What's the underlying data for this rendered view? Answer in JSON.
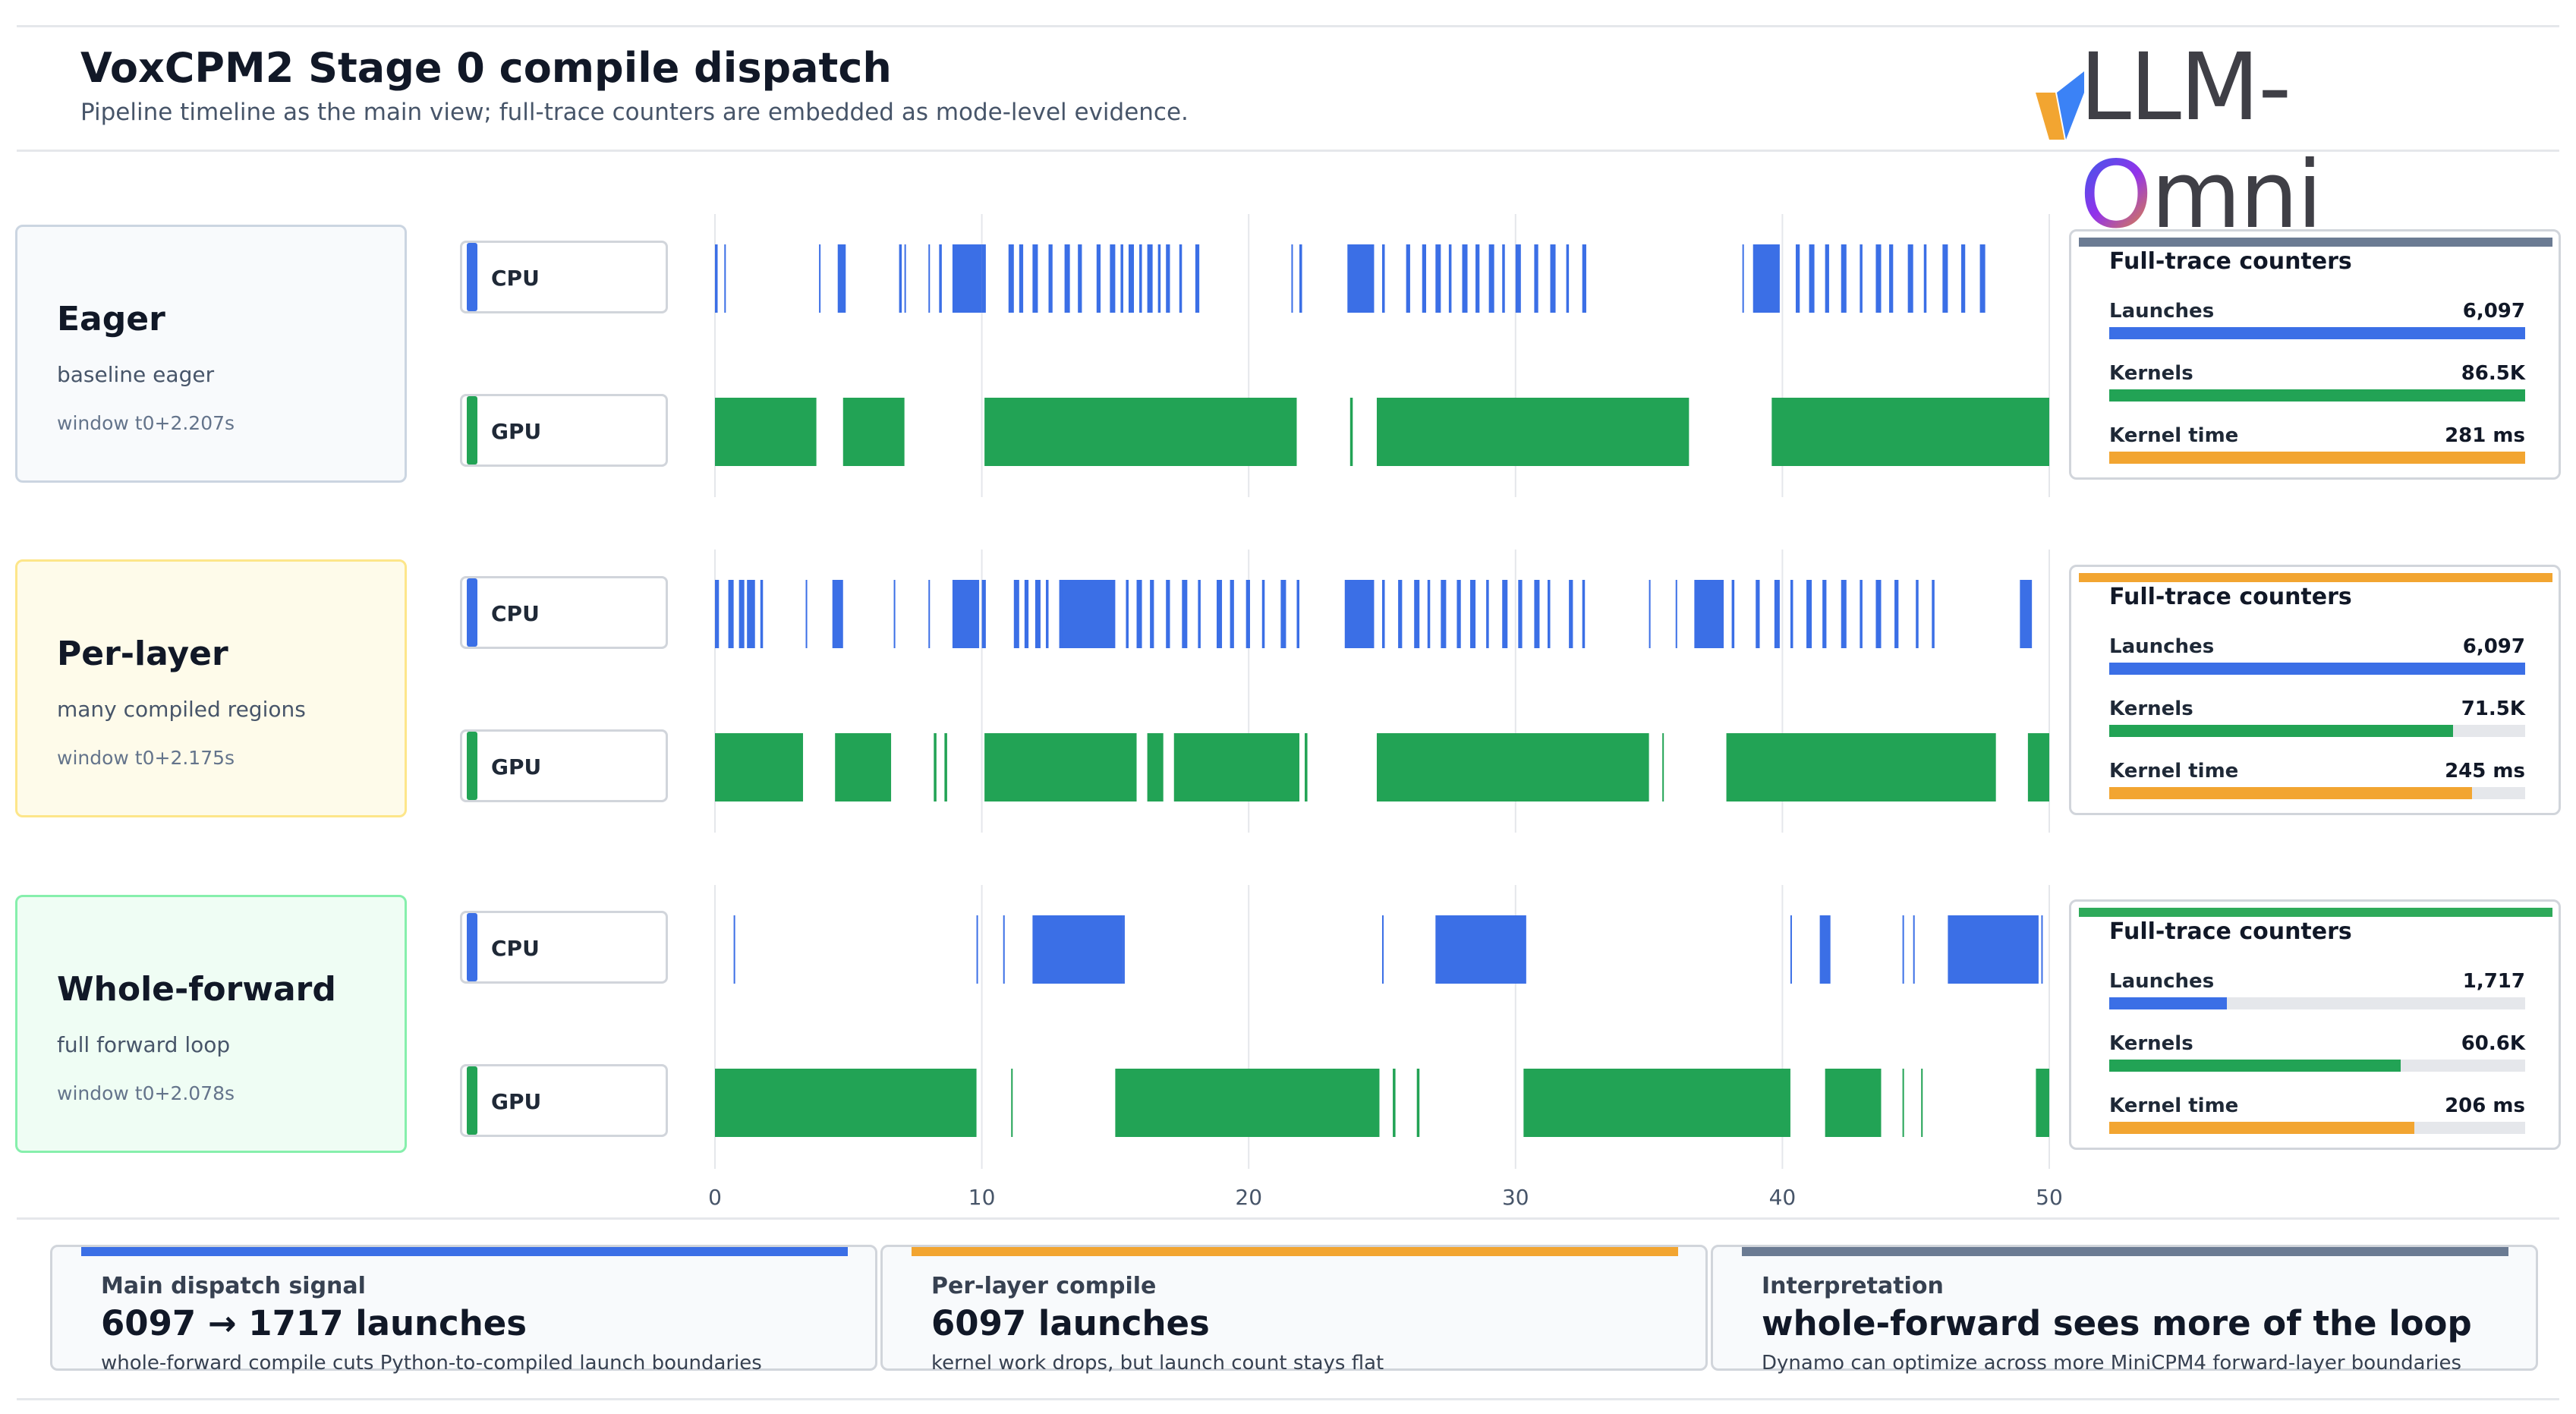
{
  "header": {
    "title": "VoxCPM2 Stage 0 compile dispatch",
    "subtitle": "Pipeline timeline as the main view; full-trace counters are embedded as mode-level evidence.",
    "logo_text": "vLLM-Omni"
  },
  "modes": [
    {
      "name": "Eager",
      "desc": "baseline eager",
      "window": "window t0+2.207s"
    },
    {
      "name": "Per-layer",
      "desc": "many compiled regions",
      "window": "window t0+2.175s"
    },
    {
      "name": "Whole-forward",
      "desc": "full forward loop",
      "window": "window t0+2.078s"
    }
  ],
  "lanes": {
    "cpu": "CPU",
    "gpu": "GPU"
  },
  "counters": [
    {
      "title": "Full-trace counters",
      "launches": {
        "label": "Launches",
        "value": "6,097",
        "fraction": 1.0
      },
      "kernels": {
        "label": "Kernels",
        "value": "86.5K",
        "fraction": 1.0
      },
      "kernel_time": {
        "label": "Kernel time",
        "value": "281 ms",
        "fraction": 1.0
      }
    },
    {
      "title": "Full-trace counters",
      "launches": {
        "label": "Launches",
        "value": "6,097",
        "fraction": 1.0
      },
      "kernels": {
        "label": "Kernels",
        "value": "71.5K",
        "fraction": 0.827
      },
      "kernel_time": {
        "label": "Kernel time",
        "value": "245 ms",
        "fraction": 0.872
      }
    },
    {
      "title": "Full-trace counters",
      "launches": {
        "label": "Launches",
        "value": "1,717",
        "fraction": 0.282
      },
      "kernels": {
        "label": "Kernels",
        "value": "60.6K",
        "fraction": 0.701
      },
      "kernel_time": {
        "label": "Kernel time",
        "value": "206 ms",
        "fraction": 0.733
      }
    }
  ],
  "bottom_cards": [
    {
      "label": "Main dispatch signal",
      "headline": "6097 → 1717 launches",
      "note": "whole-forward compile cuts Python-to-compiled launch boundaries"
    },
    {
      "label": "Per-layer compile",
      "headline": "6097 launches",
      "note": "kernel work drops, but launch count stays flat"
    },
    {
      "label": "Interpretation",
      "headline": "whole-forward sees more of the loop",
      "note": "Dynamo can optimize across more MiniCPM4 forward-layer boundaries"
    }
  ],
  "colors": {
    "cpu": "#3b6fe6",
    "gpu": "#22a355",
    "kernel_time": "#f2a531",
    "eager_accent": "#6b7b93",
    "perlayer_accent": "#f2a531",
    "whole_accent": "#2eaa5a",
    "launches": "#3b6fe6"
  },
  "chart_data": {
    "type": "timeline",
    "x_ticks": [
      0,
      10,
      20,
      30,
      40,
      50
    ],
    "xlim": [
      0,
      50
    ],
    "lanes": [
      {
        "mode": "Eager",
        "cpu": [
          [
            0,
            0.1
          ],
          [
            0.35,
            0.05
          ],
          [
            3.9,
            0.05
          ],
          [
            4.6,
            0.3
          ],
          [
            6.9,
            0.1
          ],
          [
            7.1,
            0.05
          ],
          [
            8.0,
            0.05
          ],
          [
            8.4,
            0.1
          ],
          [
            8.9,
            1.1
          ],
          [
            10.0,
            0.15
          ],
          [
            11.0,
            0.2
          ],
          [
            11.4,
            0.15
          ],
          [
            11.9,
            0.2
          ],
          [
            12.5,
            0.15
          ],
          [
            13.1,
            0.2
          ],
          [
            13.6,
            0.15
          ],
          [
            14.3,
            0.15
          ],
          [
            14.8,
            0.2
          ],
          [
            15.2,
            0.1
          ],
          [
            15.5,
            0.2
          ],
          [
            15.9,
            0.1
          ],
          [
            16.2,
            0.2
          ],
          [
            16.6,
            0.1
          ],
          [
            16.9,
            0.15
          ],
          [
            17.4,
            0.1
          ],
          [
            18.0,
            0.15
          ],
          [
            21.6,
            0.05
          ],
          [
            21.9,
            0.1
          ],
          [
            23.7,
            1.0
          ],
          [
            25.0,
            0.1
          ],
          [
            25.9,
            0.15
          ],
          [
            26.5,
            0.15
          ],
          [
            27.0,
            0.2
          ],
          [
            27.5,
            0.1
          ],
          [
            28.0,
            0.2
          ],
          [
            28.5,
            0.15
          ],
          [
            29.0,
            0.2
          ],
          [
            29.5,
            0.1
          ],
          [
            30.0,
            0.2
          ],
          [
            30.7,
            0.15
          ],
          [
            31.3,
            0.2
          ],
          [
            31.9,
            0.1
          ],
          [
            32.5,
            0.15
          ],
          [
            38.5,
            0.05
          ],
          [
            38.9,
            1.0
          ],
          [
            40.5,
            0.15
          ],
          [
            41.0,
            0.2
          ],
          [
            41.6,
            0.15
          ],
          [
            42.2,
            0.2
          ],
          [
            42.9,
            0.1
          ],
          [
            43.5,
            0.2
          ],
          [
            44.0,
            0.15
          ],
          [
            44.7,
            0.2
          ],
          [
            45.3,
            0.1
          ],
          [
            46.0,
            0.2
          ],
          [
            46.7,
            0.15
          ],
          [
            47.4,
            0.2
          ]
        ],
        "gpu": [
          [
            0,
            3.8
          ],
          [
            4.8,
            2.3
          ],
          [
            10.1,
            11.7
          ],
          [
            23.8,
            0.1
          ],
          [
            24.8,
            11.7
          ],
          [
            39.6,
            10.4
          ]
        ]
      },
      {
        "mode": "Per-layer",
        "cpu": [
          [
            0,
            0.15
          ],
          [
            0.5,
            0.2
          ],
          [
            0.9,
            0.2
          ],
          [
            1.2,
            0.3
          ],
          [
            1.7,
            0.1
          ],
          [
            3.4,
            0.05
          ],
          [
            4.4,
            0.4
          ],
          [
            6.7,
            0.05
          ],
          [
            8.0,
            0.05
          ],
          [
            8.9,
            1.0
          ],
          [
            10.0,
            0.15
          ],
          [
            11.2,
            0.2
          ],
          [
            11.6,
            0.15
          ],
          [
            12.0,
            0.2
          ],
          [
            12.4,
            0.1
          ],
          [
            12.9,
            0.2
          ],
          [
            13.0,
            2.0
          ],
          [
            15.4,
            0.1
          ],
          [
            15.8,
            0.2
          ],
          [
            16.3,
            0.15
          ],
          [
            16.9,
            0.15
          ],
          [
            17.5,
            0.2
          ],
          [
            18.1,
            0.1
          ],
          [
            18.8,
            0.2
          ],
          [
            19.3,
            0.15
          ],
          [
            19.9,
            0.15
          ],
          [
            20.5,
            0.1
          ],
          [
            21.2,
            0.2
          ],
          [
            21.8,
            0.1
          ],
          [
            23.6,
            1.1
          ],
          [
            25.0,
            0.1
          ],
          [
            25.6,
            0.15
          ],
          [
            26.2,
            0.2
          ],
          [
            26.7,
            0.1
          ],
          [
            27.2,
            0.2
          ],
          [
            27.8,
            0.15
          ],
          [
            28.3,
            0.2
          ],
          [
            28.9,
            0.1
          ],
          [
            29.5,
            0.2
          ],
          [
            30.1,
            0.15
          ],
          [
            30.7,
            0.2
          ],
          [
            31.2,
            0.1
          ],
          [
            32.0,
            0.15
          ],
          [
            32.5,
            0.1
          ],
          [
            35.0,
            0.05
          ],
          [
            36.0,
            0.05
          ],
          [
            36.7,
            1.1
          ],
          [
            38.1,
            0.1
          ],
          [
            39.0,
            0.15
          ],
          [
            39.7,
            0.2
          ],
          [
            40.3,
            0.1
          ],
          [
            40.9,
            0.2
          ],
          [
            41.5,
            0.15
          ],
          [
            42.2,
            0.2
          ],
          [
            42.9,
            0.1
          ],
          [
            43.5,
            0.2
          ],
          [
            44.2,
            0.15
          ],
          [
            45.0,
            0.1
          ],
          [
            45.6,
            0.1
          ],
          [
            48.9,
            0.45
          ]
        ],
        "gpu": [
          [
            0,
            3.3
          ],
          [
            4.5,
            2.1
          ],
          [
            8.2,
            0.1
          ],
          [
            8.6,
            0.1
          ],
          [
            10.1,
            5.7
          ],
          [
            16.2,
            0.6
          ],
          [
            17.2,
            4.7
          ],
          [
            22.1,
            0.1
          ],
          [
            24.8,
            10.2
          ],
          [
            35.5,
            0.05
          ],
          [
            37.9,
            10.1
          ],
          [
            49.2,
            0.8
          ]
        ]
      },
      {
        "mode": "Whole-forward",
        "cpu": [
          [
            0.7,
            0.05
          ],
          [
            9.8,
            0.05
          ],
          [
            10.8,
            0.05
          ],
          [
            11.9,
            3.4
          ],
          [
            15.3,
            0.05
          ],
          [
            25.0,
            0.05
          ],
          [
            27.0,
            3.4
          ],
          [
            40.3,
            0.05
          ],
          [
            41.4,
            0.4
          ],
          [
            44.5,
            0.05
          ],
          [
            44.9,
            0.05
          ],
          [
            46.2,
            3.4
          ],
          [
            49.7,
            0.05
          ]
        ],
        "gpu": [
          [
            0,
            9.8
          ],
          [
            11.1,
            0.05
          ],
          [
            15.0,
            9.9
          ],
          [
            25.4,
            0.1
          ],
          [
            26.3,
            0.1
          ],
          [
            30.3,
            10.0
          ],
          [
            41.6,
            2.1
          ],
          [
            44.5,
            0.05
          ],
          [
            45.2,
            0.05
          ],
          [
            49.5,
            0.5
          ]
        ]
      }
    ]
  }
}
